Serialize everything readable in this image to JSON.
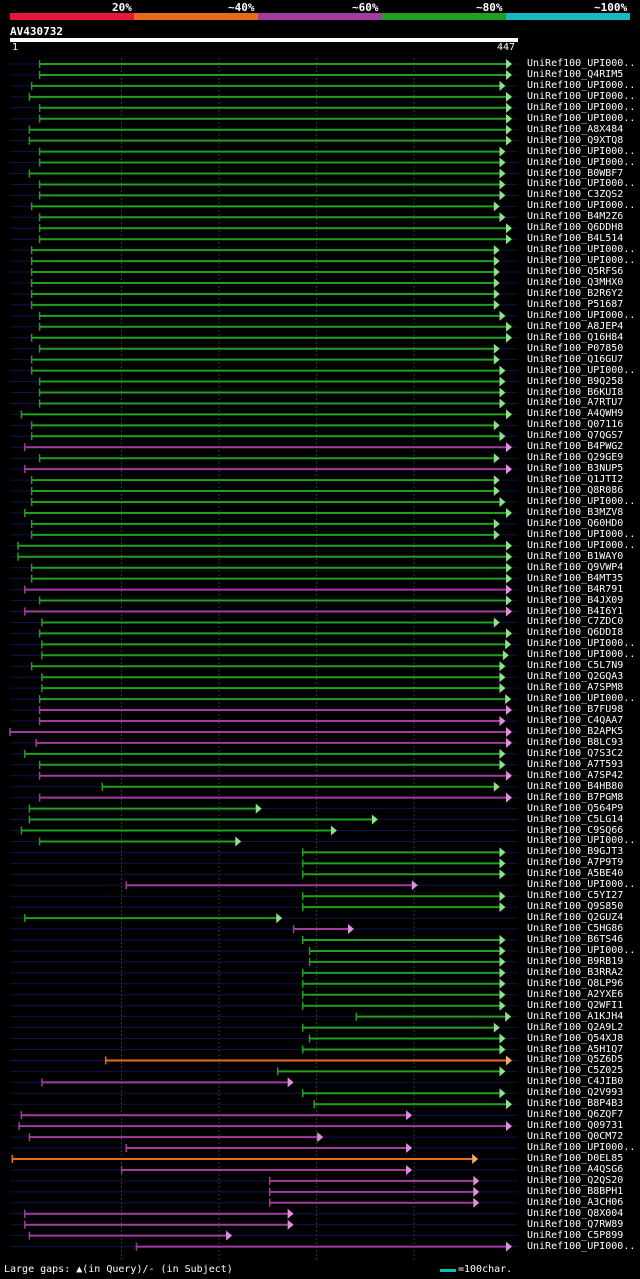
{
  "chart_data": {
    "type": "alignment-overview",
    "query_id": "AV430732",
    "query_start": "1",
    "query_end": "447",
    "query_length": 447,
    "legend": [
      {
        "label": "20%",
        "color": "#e8153c"
      },
      {
        "label": "~40%",
        "color": "#e86a1a"
      },
      {
        "label": "~60%",
        "color": "#a23ca0"
      },
      {
        "label": "~80%",
        "color": "#20a020"
      },
      {
        "label": "~100%",
        "color": "#18b8c0"
      }
    ],
    "footer_text": "Large gaps: ▲(in Query)/- (in Subject)",
    "scale_text": "=100char.",
    "hits": [
      {
        "label": "UniRef100_UPI000..",
        "start": 27,
        "end": 447,
        "c": "g"
      },
      {
        "label": "UniRef100_Q4RIM5",
        "start": 27,
        "end": 447,
        "c": "g"
      },
      {
        "label": "UniRef100_UPI000..",
        "start": 20,
        "end": 436,
        "c": "g"
      },
      {
        "label": "UniRef100_UPI000..",
        "start": 18,
        "end": 448,
        "c": "g"
      },
      {
        "label": "UniRef100_UPI000..",
        "start": 27,
        "end": 447,
        "c": "g"
      },
      {
        "label": "UniRef100_UPI000..",
        "start": 27,
        "end": 447,
        "c": "g"
      },
      {
        "label": "UniRef100_A8X484",
        "start": 18,
        "end": 446,
        "c": "g"
      },
      {
        "label": "UniRef100_Q9XTQ8",
        "start": 18,
        "end": 443,
        "c": "g"
      },
      {
        "label": "UniRef100_UPI000..",
        "start": 27,
        "end": 436,
        "c": "g"
      },
      {
        "label": "UniRef100_UPI000..",
        "start": 27,
        "end": 436,
        "c": "g"
      },
      {
        "label": "UniRef100_B0WBF7",
        "start": 18,
        "end": 436,
        "c": "g"
      },
      {
        "label": "UniRef100_UPI000..",
        "start": 27,
        "end": 436,
        "c": "g"
      },
      {
        "label": "UniRef100_C3ZQS2",
        "start": 27,
        "end": 436,
        "c": "g"
      },
      {
        "label": "UniRef100_UPI000..",
        "start": 20,
        "end": 431,
        "c": "g"
      },
      {
        "label": "UniRef100_B4M2Z6",
        "start": 27,
        "end": 436,
        "c": "g"
      },
      {
        "label": "UniRef100_Q6DDH8",
        "start": 27,
        "end": 449,
        "c": "g"
      },
      {
        "label": "UniRef100_B4L514",
        "start": 27,
        "end": 449,
        "c": "g"
      },
      {
        "label": "UniRef100_UPI000..",
        "start": 20,
        "end": 431,
        "c": "g"
      },
      {
        "label": "UniRef100_UPI000..",
        "start": 20,
        "end": 431,
        "c": "g"
      },
      {
        "label": "UniRef100_Q5RFS6",
        "start": 20,
        "end": 431,
        "c": "g"
      },
      {
        "label": "UniRef100_Q3MHX0",
        "start": 20,
        "end": 431,
        "c": "g"
      },
      {
        "label": "UniRef100_B2R6Y2",
        "start": 20,
        "end": 431,
        "c": "g"
      },
      {
        "label": "UniRef100_P51687",
        "start": 20,
        "end": 431,
        "c": "g"
      },
      {
        "label": "UniRef100_UPI000..",
        "start": 27,
        "end": 436,
        "c": "g"
      },
      {
        "label": "UniRef100_A8JEP4",
        "start": 27,
        "end": 443,
        "c": "g"
      },
      {
        "label": "UniRef100_Q16H84",
        "start": 20,
        "end": 467,
        "c": "g"
      },
      {
        "label": "UniRef100_P07850",
        "start": 27,
        "end": 431,
        "c": "g"
      },
      {
        "label": "UniRef100_Q16GU7",
        "start": 20,
        "end": 431,
        "c": "g"
      },
      {
        "label": "UniRef100_UPI000..",
        "start": 20,
        "end": 436,
        "c": "g"
      },
      {
        "label": "UniRef100_B9Q258",
        "start": 27,
        "end": 436,
        "c": "g"
      },
      {
        "label": "UniRef100_B6KUI8",
        "start": 27,
        "end": 436,
        "c": "g"
      },
      {
        "label": "UniRef100_A7RTU7",
        "start": 27,
        "end": 436,
        "c": "g"
      },
      {
        "label": "UniRef100_A4QWH9",
        "start": 11,
        "end": 467,
        "c": "g"
      },
      {
        "label": "UniRef100_Q07116",
        "start": 20,
        "end": 431,
        "c": "g"
      },
      {
        "label": "UniRef100_Q7QGS7",
        "start": 20,
        "end": 436,
        "c": "g"
      },
      {
        "label": "UniRef100_B4PWG2",
        "start": 14,
        "end": 467,
        "c": "p"
      },
      {
        "label": "UniRef100_Q29GE9",
        "start": 27,
        "end": 431,
        "c": "g"
      },
      {
        "label": "UniRef100_B3NUP5",
        "start": 14,
        "end": 449,
        "c": "p"
      },
      {
        "label": "UniRef100_Q1JTI2",
        "start": 20,
        "end": 431,
        "c": "g"
      },
      {
        "label": "UniRef100_Q8R086",
        "start": 20,
        "end": 431,
        "c": "g"
      },
      {
        "label": "UniRef100_UPI000..",
        "start": 20,
        "end": 436,
        "c": "g"
      },
      {
        "label": "UniRef100_B3MZV8",
        "start": 14,
        "end": 449,
        "c": "g"
      },
      {
        "label": "UniRef100_Q60HD0",
        "start": 20,
        "end": 431,
        "c": "g"
      },
      {
        "label": "UniRef100_UPI000..",
        "start": 20,
        "end": 431,
        "c": "g"
      },
      {
        "label": "UniRef100_UPI000..",
        "start": 8,
        "end": 449,
        "c": "g"
      },
      {
        "label": "UniRef100_B1WAY0",
        "start": 8,
        "end": 449,
        "c": "g"
      },
      {
        "label": "UniRef100_Q9VWP4",
        "start": 20,
        "end": 449,
        "c": "g"
      },
      {
        "label": "UniRef100_B4MT35",
        "start": 20,
        "end": 449,
        "c": "g"
      },
      {
        "label": "UniRef100_B4R791",
        "start": 14,
        "end": 449,
        "c": "p"
      },
      {
        "label": "UniRef100_B4JX09",
        "start": 27,
        "end": 449,
        "c": "g"
      },
      {
        "label": "UniRef100_B4I6Y1",
        "start": 14,
        "end": 449,
        "c": "p"
      },
      {
        "label": "UniRef100_C7ZDC0",
        "start": 29,
        "end": 431,
        "c": "g"
      },
      {
        "label": "UniRef100_Q6DDI8",
        "start": 27,
        "end": 449,
        "c": "g"
      },
      {
        "label": "UniRef100_UPI000..",
        "start": 29,
        "end": 441,
        "c": "g"
      },
      {
        "label": "UniRef100_UPI000..",
        "start": 29,
        "end": 439,
        "c": "g"
      },
      {
        "label": "UniRef100_C5L7N9",
        "start": 20,
        "end": 436,
        "c": "g"
      },
      {
        "label": "UniRef100_Q2GQA3",
        "start": 29,
        "end": 436,
        "c": "g"
      },
      {
        "label": "UniRef100_A7SPM8",
        "start": 29,
        "end": 436,
        "c": "g"
      },
      {
        "label": "UniRef100_UPI000..",
        "start": 27,
        "end": 441,
        "c": "g"
      },
      {
        "label": "UniRef100_B7FU98",
        "start": 27,
        "end": 467,
        "c": "p"
      },
      {
        "label": "UniRef100_C4QAA7",
        "start": 27,
        "end": 436,
        "c": "p"
      },
      {
        "label": "UniRef100_B2APK5",
        "start": 1,
        "end": 449,
        "c": "p"
      },
      {
        "label": "UniRef100_B8LC93",
        "start": 24,
        "end": 467,
        "c": "p"
      },
      {
        "label": "UniRef100_Q7S3C2",
        "start": 14,
        "end": 436,
        "c": "g"
      },
      {
        "label": "UniRef100_A7T593",
        "start": 27,
        "end": 436,
        "c": "g"
      },
      {
        "label": "UniRef100_A7SP42",
        "start": 27,
        "end": 467,
        "c": "p"
      },
      {
        "label": "UniRef100_B4HB80",
        "start": 82,
        "end": 431,
        "c": "g"
      },
      {
        "label": "UniRef100_B7PGM8",
        "start": 27,
        "end": 449,
        "c": "p"
      },
      {
        "label": "UniRef100_Q564P9",
        "start": 18,
        "end": 222,
        "c": "g"
      },
      {
        "label": "UniRef100_C5LG14",
        "start": 18,
        "end": 324,
        "c": "g"
      },
      {
        "label": "UniRef100_C9SQ66",
        "start": 11,
        "end": 288,
        "c": "g"
      },
      {
        "label": "UniRef100_UPI000..",
        "start": 27,
        "end": 204,
        "c": "g"
      },
      {
        "label": "UniRef100_B9GJT3",
        "start": 258,
        "end": 436,
        "c": "g"
      },
      {
        "label": "UniRef100_A7P9T9",
        "start": 258,
        "end": 436,
        "c": "g"
      },
      {
        "label": "UniRef100_A5BE40",
        "start": 258,
        "end": 436,
        "c": "g"
      },
      {
        "label": "UniRef100_UPI000..",
        "start": 103,
        "end": 359,
        "c": "p"
      },
      {
        "label": "UniRef100_C5YI27",
        "start": 258,
        "end": 436,
        "c": "g"
      },
      {
        "label": "UniRef100_Q9S850",
        "start": 258,
        "end": 436,
        "c": "g"
      },
      {
        "label": "UniRef100_Q2GUZ4",
        "start": 14,
        "end": 240,
        "c": "g"
      },
      {
        "label": "UniRef100_C5HG86",
        "start": 250,
        "end": 303,
        "c": "p"
      },
      {
        "label": "UniRef100_B6TS46",
        "start": 258,
        "end": 436,
        "c": "g"
      },
      {
        "label": "UniRef100_UPI000..",
        "start": 264,
        "end": 436,
        "c": "g"
      },
      {
        "label": "UniRef100_B9RB19",
        "start": 264,
        "end": 436,
        "c": "g"
      },
      {
        "label": "UniRef100_B3RRA2",
        "start": 258,
        "end": 436,
        "c": "g"
      },
      {
        "label": "UniRef100_Q8LP96",
        "start": 258,
        "end": 436,
        "c": "g"
      },
      {
        "label": "UniRef100_A2YXE6",
        "start": 258,
        "end": 436,
        "c": "g"
      },
      {
        "label": "UniRef100_Q2WFI1",
        "start": 258,
        "end": 436,
        "c": "g"
      },
      {
        "label": "UniRef100_A1KJH4",
        "start": 305,
        "end": 441,
        "c": "g"
      },
      {
        "label": "UniRef100_Q2A9L2",
        "start": 258,
        "end": 431,
        "c": "g"
      },
      {
        "label": "UniRef100_Q54XJ8",
        "start": 264,
        "end": 436,
        "c": "g"
      },
      {
        "label": "UniRef100_A5H1Q7",
        "start": 258,
        "end": 436,
        "c": "g"
      },
      {
        "label": "UniRef100_Q5Z6D5",
        "start": 85,
        "end": 467,
        "c": "o"
      },
      {
        "label": "UniRef100_C5Z025",
        "start": 236,
        "end": 436,
        "c": "g"
      },
      {
        "label": "UniRef100_C4JIB0",
        "start": 29,
        "end": 250,
        "c": "p"
      },
      {
        "label": "UniRef100_Q2V993",
        "start": 258,
        "end": 436,
        "c": "g"
      },
      {
        "label": "UniRef100_B8P4B3",
        "start": 268,
        "end": 467,
        "c": "g"
      },
      {
        "label": "UniRef100_Q6ZQF7",
        "start": 11,
        "end": 354,
        "c": "p"
      },
      {
        "label": "UniRef100_Q09731",
        "start": 9,
        "end": 467,
        "c": "p"
      },
      {
        "label": "UniRef100_Q0CM72",
        "start": 18,
        "end": 276,
        "c": "p"
      },
      {
        "label": "UniRef100_UPI000..",
        "start": 103,
        "end": 354,
        "c": "p"
      },
      {
        "label": "UniRef100_D0EL85",
        "start": 3,
        "end": 412,
        "c": "o"
      },
      {
        "label": "UniRef100_A4QSG6",
        "start": 99,
        "end": 354,
        "c": "p"
      },
      {
        "label": "UniRef100_Q2QS20",
        "start": 229,
        "end": 413,
        "c": "p"
      },
      {
        "label": "UniRef100_B8BPH1",
        "start": 229,
        "end": 413,
        "c": "p"
      },
      {
        "label": "UniRef100_A3CH06",
        "start": 229,
        "end": 413,
        "c": "p"
      },
      {
        "label": "UniRef100_Q8X004",
        "start": 14,
        "end": 250,
        "c": "p"
      },
      {
        "label": "UniRef100_Q7RW89",
        "start": 14,
        "end": 250,
        "c": "p"
      },
      {
        "label": "UniRef100_C5P899",
        "start": 18,
        "end": 196,
        "c": "p"
      },
      {
        "label": "UniRef100_UPI000..",
        "start": 112,
        "end": 449,
        "c": "p"
      }
    ]
  }
}
